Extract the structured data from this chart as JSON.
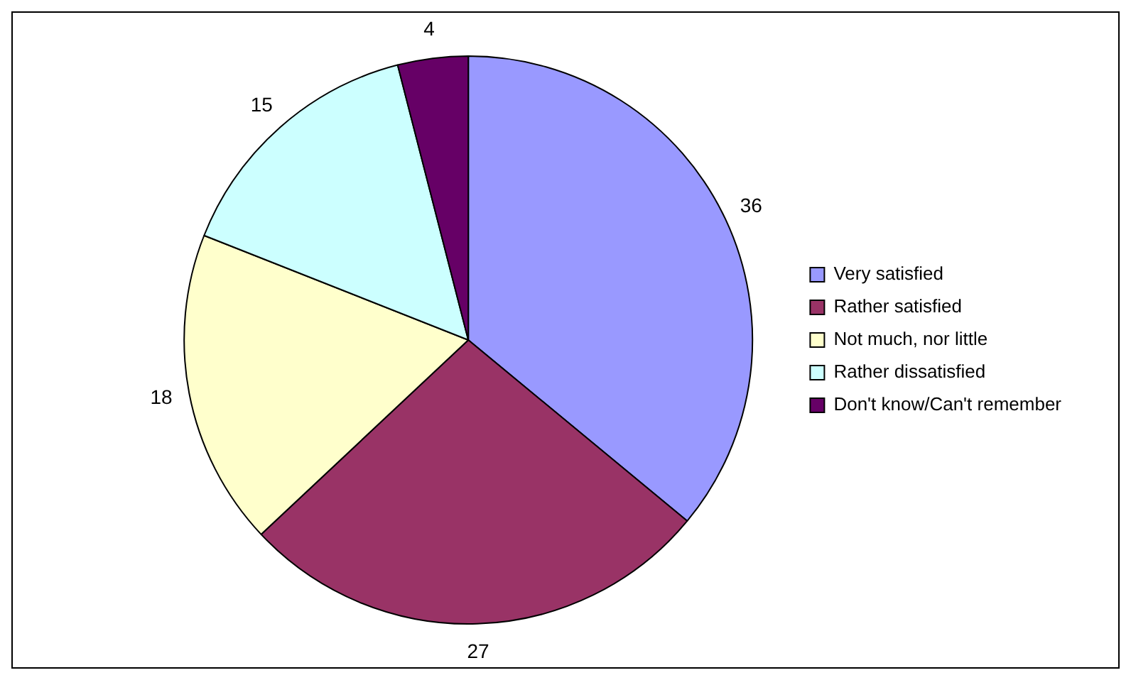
{
  "chart_data": {
    "type": "pie",
    "categories": [
      "Very satisfied",
      "Rather satisfied",
      "Not much, nor little",
      "Rather dissatisfied",
      "Don't know/Can't remember"
    ],
    "values": [
      36,
      27,
      18,
      15,
      4
    ],
    "colors": [
      "#9999ff",
      "#993366",
      "#ffffcc",
      "#ccffff",
      "#660066"
    ],
    "data_labels": true,
    "legend": "right"
  }
}
